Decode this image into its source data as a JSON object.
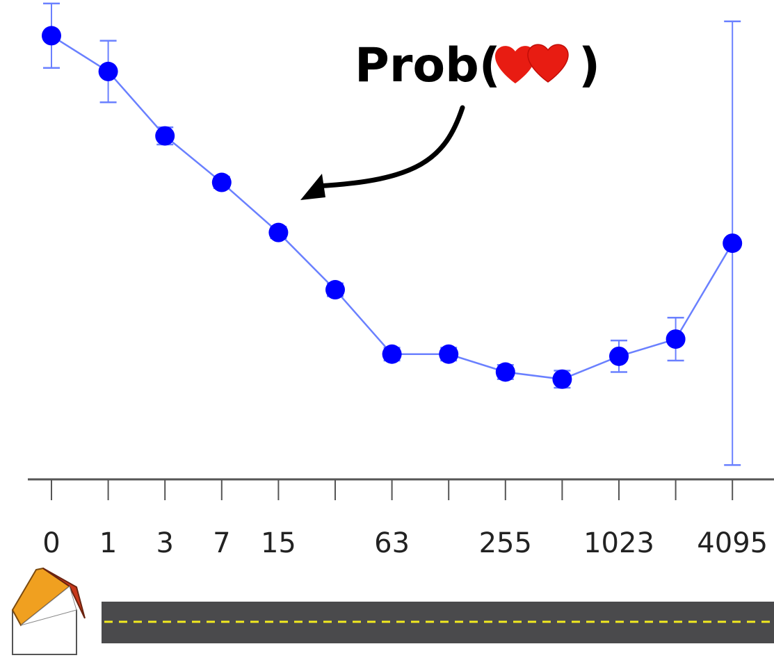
{
  "chart_data": {
    "type": "line",
    "title": "",
    "xlabel": "",
    "ylabel": "",
    "x_scale": "log2(x+1)",
    "x_tick_labels": [
      "0",
      "1",
      "3",
      "7",
      "15",
      "63",
      "255",
      "1023",
      "4095"
    ],
    "series": [
      {
        "x": [
          0,
          1,
          3,
          7,
          15,
          31,
          63,
          127,
          255,
          511,
          1023,
          2047,
          4095
        ],
        "values": [
          0.62,
          0.57,
          0.48,
          0.415,
          0.345,
          0.265,
          0.175,
          0.175,
          0.15,
          0.14,
          0.172,
          0.196,
          0.33
        ],
        "error": [
          0.045,
          0.043,
          0.012,
          0.008,
          0.008,
          0.009,
          0.009,
          0.009,
          0.01,
          0.012,
          0.022,
          0.03,
          0.31
        ],
        "color": "#0000ff"
      }
    ],
    "annotations": [
      {
        "text_prefix": "Prob(",
        "symbol": "two-hearts-icon",
        "text_suffix": ")",
        "arrow_target_x": 15
      }
    ],
    "grid": false,
    "legend": "none"
  },
  "colors": {
    "series": "#0000ff",
    "line": "#6a80ff",
    "heart": "#e81c12",
    "road": "#4a4a4c",
    "road_dash": "#f2ea1f",
    "axis": "#555555"
  },
  "illustration": {
    "house": "house-icon",
    "road": "road-icon"
  }
}
